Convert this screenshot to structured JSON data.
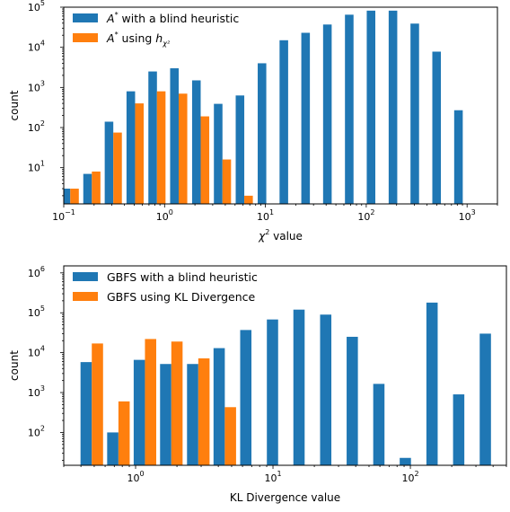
{
  "chart_data": [
    {
      "type": "bar",
      "xscale": "log",
      "yscale": "log",
      "xlim": [
        0.1,
        2000
      ],
      "ylim": [
        1.25,
        100000
      ],
      "xticks": [
        {
          "value": 0.1,
          "base": "10",
          "exp": "−1"
        },
        {
          "value": 1,
          "base": "10",
          "exp": "0"
        },
        {
          "value": 10,
          "base": "10",
          "exp": "1"
        },
        {
          "value": 100,
          "base": "10",
          "exp": "2"
        },
        {
          "value": 1000,
          "base": "10",
          "exp": "3"
        }
      ],
      "yticks": [
        {
          "value": 10,
          "base": "10",
          "exp": "1"
        },
        {
          "value": 100,
          "base": "10",
          "exp": "2"
        },
        {
          "value": 1000,
          "base": "10",
          "exp": "3"
        },
        {
          "value": 10000,
          "base": "10",
          "exp": "4"
        },
        {
          "value": 100000,
          "base": "10",
          "exp": "5"
        }
      ],
      "xlabel": {
        "symbol": "χ",
        "sup": "2",
        "text": " value"
      },
      "ylabel": "count",
      "legend_position": "upper-left",
      "series": [
        {
          "name": {
            "base": "A",
            "sup": "*",
            "text": " with a blind heuristic"
          },
          "color": "#1f77b4",
          "points": [
            {
              "x": 0.116,
              "y": 3
            },
            {
              "x": 0.19,
              "y": 7
            },
            {
              "x": 0.31,
              "y": 140
            },
            {
              "x": 0.51,
              "y": 800
            },
            {
              "x": 0.84,
              "y": 2500
            },
            {
              "x": 1.38,
              "y": 3000
            },
            {
              "x": 2.28,
              "y": 1500
            },
            {
              "x": 3.75,
              "y": 390
            },
            {
              "x": 6.17,
              "y": 630
            },
            {
              "x": 10.2,
              "y": 4000
            },
            {
              "x": 16.8,
              "y": 15000
            },
            {
              "x": 27.6,
              "y": 23000
            },
            {
              "x": 45.4,
              "y": 37000
            },
            {
              "x": 74.8,
              "y": 65000
            },
            {
              "x": 123,
              "y": 82000
            },
            {
              "x": 203,
              "y": 82000
            },
            {
              "x": 334,
              "y": 39000
            },
            {
              "x": 550,
              "y": 7800
            },
            {
              "x": 906,
              "y": 270
            }
          ]
        },
        {
          "name": {
            "base": "A",
            "sup": "*",
            "text": " using ",
            "h": "h",
            "sub": "χ²"
          },
          "color": "#ff7f0e",
          "points": [
            {
              "x": 0.116,
              "y": 3
            },
            {
              "x": 0.19,
              "y": 8
            },
            {
              "x": 0.31,
              "y": 75
            },
            {
              "x": 0.51,
              "y": 400
            },
            {
              "x": 0.84,
              "y": 800
            },
            {
              "x": 1.38,
              "y": 700
            },
            {
              "x": 2.28,
              "y": 190
            },
            {
              "x": 3.75,
              "y": 16
            },
            {
              "x": 6.17,
              "y": 2
            }
          ]
        }
      ]
    },
    {
      "type": "bar",
      "xscale": "log",
      "yscale": "log",
      "xlim": [
        0.3,
        500
      ],
      "ylim": [
        15,
        1500000
      ],
      "xticks": [
        {
          "value": 1,
          "base": "10",
          "exp": "0"
        },
        {
          "value": 10,
          "base": "10",
          "exp": "1"
        },
        {
          "value": 100,
          "base": "10",
          "exp": "2"
        }
      ],
      "yticks": [
        {
          "value": 100,
          "base": "10",
          "exp": "2"
        },
        {
          "value": 1000,
          "base": "10",
          "exp": "3"
        },
        {
          "value": 10000,
          "base": "10",
          "exp": "4"
        },
        {
          "value": 100000,
          "base": "10",
          "exp": "5"
        },
        {
          "value": 1000000,
          "base": "10",
          "exp": "6"
        }
      ],
      "xlabel": {
        "text": "KL Divergence value"
      },
      "ylabel": "count",
      "legend_position": "upper-left",
      "series": [
        {
          "name": {
            "text": "GBFS  with a blind heuristic"
          },
          "color": "#1f77b4",
          "points": [
            {
              "x": 0.48,
              "y": 5800
            },
            {
              "x": 0.75,
              "y": 100
            },
            {
              "x": 1.17,
              "y": 6600
            },
            {
              "x": 1.82,
              "y": 5200
            },
            {
              "x": 2.86,
              "y": 5200
            },
            {
              "x": 4.46,
              "y": 13000
            },
            {
              "x": 6.97,
              "y": 37000
            },
            {
              "x": 10.9,
              "y": 68000
            },
            {
              "x": 17.0,
              "y": 120000
            },
            {
              "x": 26.6,
              "y": 90000
            },
            {
              "x": 41.5,
              "y": 25000
            },
            {
              "x": 64.8,
              "y": 1650
            },
            {
              "x": 101,
              "y": 23
            },
            {
              "x": 158,
              "y": 180000
            },
            {
              "x": 247,
              "y": 900
            },
            {
              "x": 386,
              "y": 30000
            }
          ]
        },
        {
          "name": {
            "text": "GBFS using KL Divergence"
          },
          "color": "#ff7f0e",
          "points": [
            {
              "x": 0.48,
              "y": 17000
            },
            {
              "x": 0.75,
              "y": 600
            },
            {
              "x": 1.17,
              "y": 22000
            },
            {
              "x": 1.82,
              "y": 19000
            },
            {
              "x": 2.86,
              "y": 7200
            },
            {
              "x": 4.46,
              "y": 430
            }
          ]
        }
      ]
    }
  ]
}
